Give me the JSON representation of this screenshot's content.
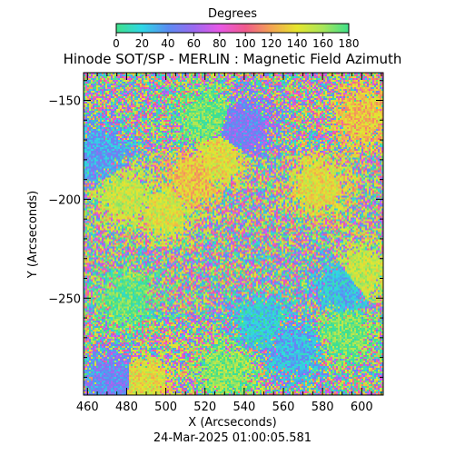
{
  "colorbar": {
    "title": "Degrees",
    "ticks": [
      "0",
      "20",
      "40",
      "60",
      "80",
      "100",
      "120",
      "140",
      "160",
      "180"
    ],
    "range": [
      0,
      180
    ],
    "colormap": [
      "#3fe08a",
      "#2fd7e6",
      "#5a8cf2",
      "#9a6af0",
      "#e858e6",
      "#f05a8c",
      "#f3a452",
      "#e6e62e",
      "#a8e65a",
      "#3fe08a"
    ]
  },
  "chart_data": {
    "type": "heatmap",
    "title": "Hinode SOT/SP - MERLIN : Magnetic Field Azimuth",
    "xlabel": "X (Arcseconds)",
    "ylabel": "Y (Arcseconds)",
    "xlim": [
      458,
      611
    ],
    "ylim": [
      -299,
      -136
    ],
    "x_ticks": [
      460,
      480,
      500,
      520,
      540,
      560,
      580,
      600
    ],
    "y_ticks": [
      -150,
      -200,
      -250
    ],
    "y_tick_labels": [
      "−150",
      "−200",
      "−250"
    ],
    "value_unit": "Degrees",
    "value_range": [
      0,
      180
    ],
    "smooth_regions_deg": [
      {
        "x": 513,
        "y": -190,
        "value": 130
      },
      {
        "x": 527,
        "y": -180,
        "value": 140
      },
      {
        "x": 539,
        "y": -163,
        "value": 50
      },
      {
        "x": 520,
        "y": -158,
        "value": 170
      },
      {
        "x": 465,
        "y": -176,
        "value": 35
      },
      {
        "x": 500,
        "y": -206,
        "value": 145
      },
      {
        "x": 479,
        "y": -198,
        "value": 150
      },
      {
        "x": 589,
        "y": -244,
        "value": 25
      },
      {
        "x": 600,
        "y": -158,
        "value": 130
      },
      {
        "x": 600,
        "y": -236,
        "value": 150
      },
      {
        "x": 480,
        "y": -250,
        "value": 175
      },
      {
        "x": 565,
        "y": -276,
        "value": 30
      },
      {
        "x": 488,
        "y": -293,
        "value": 140
      },
      {
        "x": 473,
        "y": -292,
        "value": 45
      },
      {
        "x": 530,
        "y": -287,
        "value": 165
      },
      {
        "x": 592,
        "y": -268,
        "value": 170
      },
      {
        "x": 548,
        "y": -262,
        "value": 20
      },
      {
        "x": 578,
        "y": -193,
        "value": 140
      }
    ]
  },
  "timestamp": "24-Mar-2025 01:00:05.581"
}
